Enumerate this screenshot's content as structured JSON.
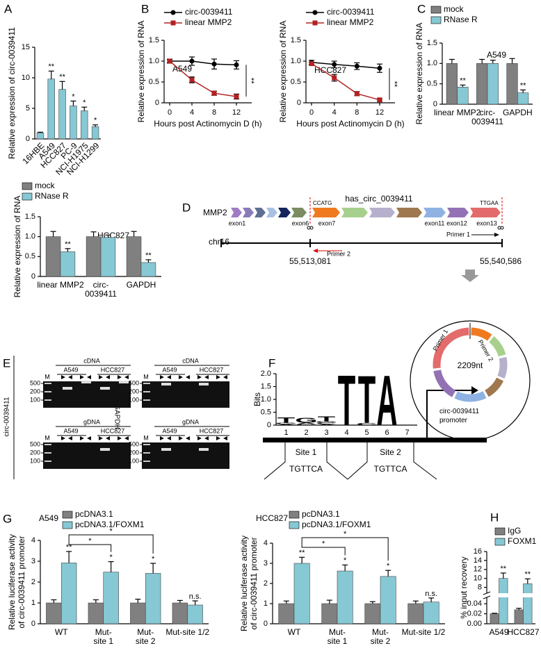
{
  "panel_labels": [
    "A",
    "B",
    "C",
    "D",
    "E",
    "F",
    "G",
    "H"
  ],
  "chart_data": [
    {
      "type": "bar",
      "ylabel": "Relative expression of circ-0039411",
      "categories": [
        "16HBE",
        "A549",
        "HCC827",
        "PC-9",
        "NCI-H1975",
        "NCI-H1299"
      ],
      "series": [
        {
          "color": "#86c8d4",
          "values": [
            1.0,
            9.8,
            8.1,
            5.4,
            4.6,
            2.0
          ],
          "errors": [
            0.1,
            1.3,
            1.3,
            0.8,
            0.6,
            0.3
          ]
        }
      ],
      "ylim": [
        0,
        15
      ],
      "yticks": [
        0,
        5,
        10,
        15
      ],
      "rotate_labels": true,
      "annotations": [
        {
          "series": 0,
          "index": 1,
          "text": "**"
        },
        {
          "series": 0,
          "index": 2,
          "text": "**"
        },
        {
          "series": 0,
          "index": 3,
          "text": "*"
        },
        {
          "series": 0,
          "index": 4,
          "text": "*"
        },
        {
          "series": 0,
          "index": 5,
          "text": "*"
        }
      ]
    },
    {
      "type": "line",
      "subtitle": "A549",
      "xlabel": "Hours post Actinomycin D (h)",
      "ylabel": "Relative expression of RNA",
      "x": [
        0,
        4,
        8,
        12
      ],
      "xlim": [
        0,
        12
      ],
      "xticks": [
        0,
        4,
        8,
        12
      ],
      "ylim": [
        0,
        1.5
      ],
      "yticks": [
        0,
        0.5,
        {
          "value": 1.0,
          "label": "1.0"
        },
        1.5
      ],
      "legend": "top-left",
      "significance": "**",
      "series": [
        {
          "name": "circ-0039411",
          "color": "#000000",
          "marker": "circle",
          "values": [
            1.0,
            1.0,
            0.93,
            0.91
          ],
          "errors": [
            0.05,
            0.1,
            0.12,
            0.1
          ]
        },
        {
          "name": "linear MMP2",
          "color": "#b22222",
          "marker": "square",
          "values": [
            1.0,
            0.55,
            0.23,
            0.15
          ],
          "errors": [
            0.03,
            0.07,
            0.05,
            0.06
          ]
        }
      ]
    },
    {
      "type": "line",
      "subtitle": "HCC827",
      "xlabel": "Hours post Actinomycin D (h)",
      "ylabel": "Relative expression of RNA",
      "x": [
        0,
        4,
        8,
        12
      ],
      "xlim": [
        0,
        12
      ],
      "xticks": [
        0,
        4,
        8,
        12
      ],
      "ylim": [
        0,
        1.5
      ],
      "yticks": [
        0,
        0.5,
        {
          "value": 1.0,
          "label": "1.0"
        },
        1.5
      ],
      "legend": "top-left",
      "significance": "**",
      "series": [
        {
          "name": "circ-0039411",
          "color": "#000000",
          "marker": "circle",
          "values": [
            0.97,
            0.92,
            0.88,
            0.83
          ],
          "errors": [
            0.05,
            0.08,
            0.08,
            0.1
          ]
        },
        {
          "name": "linear MMP2",
          "color": "#b22222",
          "marker": "square",
          "values": [
            0.94,
            0.6,
            0.22,
            0.07
          ],
          "errors": [
            0.03,
            0.08,
            0.05,
            0.03
          ]
        }
      ]
    },
    {
      "type": "bar",
      "subtitle": "A549",
      "ylabel": "Relative expression of RNA",
      "categories": [
        "linear MMP2",
        [
          "circ-",
          "0039411"
        ],
        "GAPDH"
      ],
      "ylim": [
        0,
        1.5
      ],
      "yticks": [
        0,
        0.5,
        {
          "value": 1.0,
          "label": "1.0"
        },
        1.5
      ],
      "legend": "top-left",
      "series": [
        {
          "name": "mock",
          "color": "#808080",
          "values": [
            1.0,
            1.0,
            1.0
          ],
          "errors": [
            0.1,
            0.1,
            0.12
          ]
        },
        {
          "name": "RNase R",
          "color": "#86c8d4",
          "values": [
            0.42,
            1.0,
            0.28
          ],
          "errors": [
            0.05,
            0.08,
            0.07
          ]
        }
      ],
      "annotations": [
        {
          "series": 1,
          "index": 0,
          "text": "**"
        },
        {
          "series": 1,
          "index": 2,
          "text": "**"
        }
      ]
    },
    {
      "type": "bar",
      "subtitle": "HCC827",
      "ylabel": "Relative expression of RNA",
      "categories": [
        "linear MMP2",
        [
          "circ-",
          "0039411"
        ],
        "GAPDH"
      ],
      "ylim": [
        0,
        1.5
      ],
      "yticks": [
        0,
        0.5,
        {
          "value": 1.0,
          "label": "1.0"
        },
        1.5
      ],
      "legend": "top-left",
      "series": [
        {
          "name": "mock",
          "color": "#808080",
          "values": [
            1.0,
            1.0,
            1.0
          ],
          "errors": [
            0.13,
            0.12,
            0.13
          ]
        },
        {
          "name": "RNase R",
          "color": "#86c8d4",
          "values": [
            0.62,
            0.98,
            0.35
          ],
          "errors": [
            0.08,
            0.06,
            0.07
          ]
        }
      ],
      "annotations": [
        {
          "series": 1,
          "index": 0,
          "text": "**"
        },
        {
          "series": 1,
          "index": 2,
          "text": "**"
        }
      ]
    },
    {
      "type": "logo",
      "ylabel": "Bits",
      "categories": [
        1,
        2,
        3,
        4,
        5,
        6,
        7
      ],
      "ylim": [
        0,
        2
      ],
      "yticks": [
        0,
        0.5,
        {
          "value": 1.0,
          "label": "1.0"
        },
        1.5,
        {
          "value": 2.0,
          "label": "2.0"
        }
      ],
      "letter_colors": {
        "A": "#00a651",
        "C": "#1f3fd0",
        "G": "#f5a300",
        "T": "#ff0000"
      },
      "stacks": [
        [
          {
            "letter": "A",
            "bits": 0.04
          },
          {
            "letter": "G",
            "bits": 0.06
          },
          {
            "letter": "T",
            "bits": 0.22
          }
        ],
        [
          {
            "letter": "C",
            "bits": 0.04
          },
          {
            "letter": "A",
            "bits": 0.05
          },
          {
            "letter": "G",
            "bits": 0.2
          }
        ],
        [
          {
            "letter": "A",
            "bits": 0.04
          },
          {
            "letter": "C",
            "bits": 0.05
          },
          {
            "letter": "G",
            "bits": 0.05
          },
          {
            "letter": "T",
            "bits": 0.22
          }
        ],
        [
          {
            "letter": "T",
            "bits": 2.0
          }
        ],
        [
          {
            "letter": "C",
            "bits": 0.08
          },
          {
            "letter": "T",
            "bits": 1.9
          }
        ],
        [
          {
            "letter": "A",
            "bits": 2.0
          }
        ],
        []
      ],
      "sites": [
        {
          "name": "Site 1",
          "sequence": "TGTTCA"
        },
        {
          "name": "Site 2",
          "sequence": "TGTTCA"
        }
      ],
      "promoter_label": [
        "circ-0039411",
        "promoter"
      ]
    },
    {
      "type": "bar",
      "subtitle": "A549",
      "ylabel": [
        "Relative luciferase activity",
        "of circ-0039411 promoter"
      ],
      "categories": [
        "WT",
        [
          "Mut-",
          "site 1"
        ],
        [
          "Mut-",
          "site 2"
        ],
        "Mut-site 1/2"
      ],
      "ylim": [
        0,
        4
      ],
      "yticks": [
        0,
        1,
        2,
        3,
        4
      ],
      "legend": "top-left",
      "series": [
        {
          "name": "pcDNA3.1",
          "color": "#808080",
          "values": [
            1,
            1,
            1,
            1
          ],
          "errors": [
            0.15,
            0.15,
            0.18,
            0.12
          ]
        },
        {
          "name": "pcDNA3.1/FOXM1",
          "color": "#86c8d4",
          "values": [
            2.92,
            2.48,
            2.42,
            0.9
          ],
          "errors": [
            0.55,
            0.5,
            0.48,
            0.2
          ]
        }
      ],
      "annotations": [
        {
          "series": 1,
          "index": 0,
          "text": "**"
        },
        {
          "series": 1,
          "index": 1,
          "text": "*"
        },
        {
          "series": 1,
          "index": 2,
          "text": "*"
        },
        {
          "series": 1,
          "index": 3,
          "text": "n.s."
        }
      ],
      "brackets": [
        {
          "series": 1,
          "from": 0,
          "to": 1,
          "text": "*"
        },
        {
          "series": 1,
          "from": 0,
          "to": 2,
          "text": "*"
        }
      ]
    },
    {
      "type": "bar",
      "subtitle": "HCC827",
      "ylabel": [
        "Relative luciferase activity",
        "of circ-0039411 promoter"
      ],
      "categories": [
        "WT",
        [
          "Mut-",
          "site 1"
        ],
        [
          "Mut-",
          "site 2"
        ],
        "Mut-site 1/2"
      ],
      "ylim": [
        0,
        4
      ],
      "yticks": [
        0,
        1,
        2,
        3,
        4
      ],
      "legend": "top-left",
      "series": [
        {
          "name": "pcDNA3.1",
          "color": "#808080",
          "values": [
            1,
            1,
            1,
            1
          ],
          "errors": [
            0.13,
            0.17,
            0.1,
            0.13
          ]
        },
        {
          "name": "pcDNA3.1/FOXM1",
          "color": "#86c8d4",
          "values": [
            3.0,
            2.62,
            2.35,
            1.08
          ],
          "errors": [
            0.3,
            0.3,
            0.3,
            0.2
          ]
        }
      ],
      "annotations": [
        {
          "series": 1,
          "index": 0,
          "text": "**"
        },
        {
          "series": 1,
          "index": 1,
          "text": "*"
        },
        {
          "series": 1,
          "index": 2,
          "text": "*"
        },
        {
          "series": 1,
          "index": 3,
          "text": "n.s."
        }
      ],
      "brackets": [
        {
          "series": 1,
          "from": 0,
          "to": 1,
          "text": "*"
        },
        {
          "series": 1,
          "from": 0,
          "to": 2,
          "text": "*"
        }
      ]
    },
    {
      "type": "bar",
      "ylabel": "% input recovery",
      "categories": [
        "A549",
        "HCC827"
      ],
      "ylim": [
        0,
        16
      ],
      "axis_break": [
        0.05,
        7
      ],
      "yticks": [
        {
          "value": 0,
          "label": "0.00"
        },
        0.02,
        0.04,
        8,
        10,
        12,
        14,
        16
      ],
      "legend": "top-left",
      "series": [
        {
          "name": "IgG",
          "color": "#808080",
          "values": [
            0.02,
            0.028
          ],
          "errors": [
            0.001,
            0.003
          ]
        },
        {
          "name": "FOXM1",
          "color": "#86c8d4",
          "values": [
            10,
            8.8
          ],
          "errors": [
            1.2,
            1.1
          ]
        }
      ],
      "annotations": [
        {
          "series": 1,
          "index": 0,
          "text": "**"
        },
        {
          "series": 1,
          "index": 1,
          "text": "**"
        }
      ]
    }
  ],
  "diagram": {
    "gene": "MMP2",
    "circ_name": "has_circ_0039411",
    "junction_left": "CCATG",
    "junction_right": "TTGAA",
    "exons": [
      "exon1",
      "exon6",
      "exon7",
      "exon11",
      "exon12",
      "exon13"
    ],
    "primer_1": "Primer 1",
    "primer_2": "Primer 2",
    "chromosome": "chr16",
    "start": "55,513,081",
    "end": "55,540,586",
    "circ_length": "2209nt"
  },
  "gels": {
    "row_label": "circ-0039411",
    "control_label": "GAPDH",
    "templates": [
      "cDNA",
      "gDNA"
    ],
    "cell_lines": [
      "A549",
      "HCC827"
    ],
    "marker": "M",
    "sizes": [
      "500",
      "200",
      "100"
    ]
  }
}
